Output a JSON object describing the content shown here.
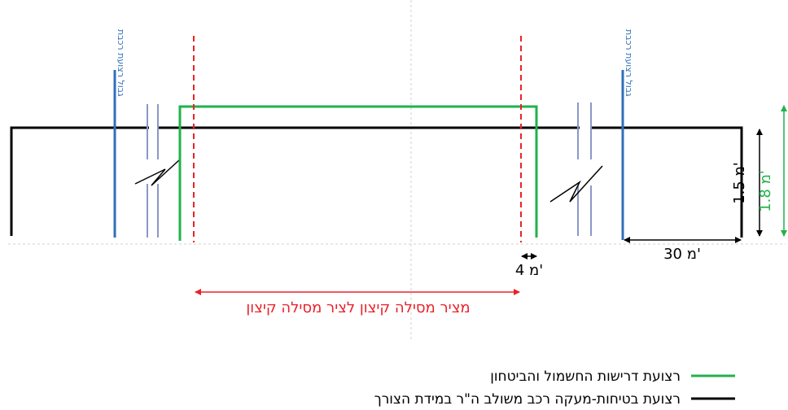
{
  "labels": {
    "track_border_left": "גבול רצועת רכבת",
    "track_border_right": "גבול רצועת רכבת",
    "dim_4m": "4 מ'",
    "dim_30m": "30 מ'",
    "dim_1_5m": "1.5 מ'",
    "dim_1_8m": "1.8 מ'",
    "outer_track_to_track": "מציר מסילה קיצון לציר מסילה קיצון"
  },
  "legend": [
    {
      "label": "רצועת דרישות החשמול והביטחון",
      "color": "#21b24b"
    },
    {
      "label": "רצועת בטיחות-מעקה רכב משולב ה\"ר במידת הצורך",
      "color": "#000000"
    }
  ],
  "colors": {
    "track_border": "#2f6fb8",
    "outer_track_axis": "#e8232a",
    "electrification_strip": "#21b24b",
    "safety_strip": "#000000",
    "rails": "#8a98c8"
  }
}
